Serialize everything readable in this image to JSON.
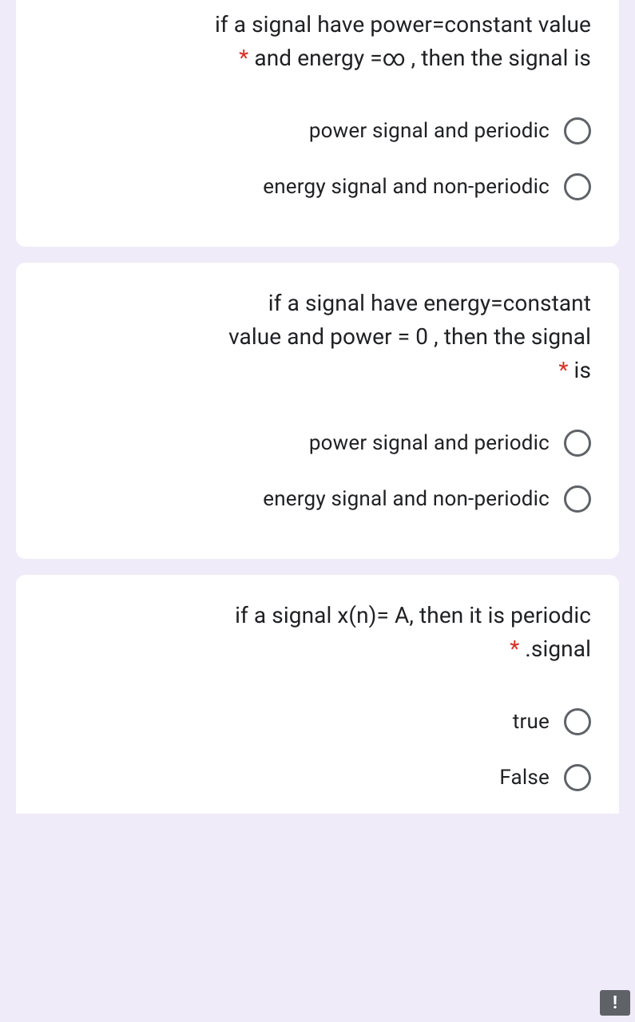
{
  "colors": {
    "page_bg": "#f0ebf8",
    "card_bg": "#ffffff",
    "text": "#202124",
    "required": "#d93025",
    "radio_border": "#5f6368",
    "badge_bg": "#5f6368"
  },
  "typography": {
    "question_fontsize": 28,
    "option_fontsize": 26,
    "font_family": "Roboto, Arial, sans-serif"
  },
  "questions": [
    {
      "text_before": "if a signal have power=constant value and energy =∞ , then the signal is",
      "required_marker": "*",
      "options": [
        {
          "label": "power signal and periodic"
        },
        {
          "label": "energy signal and non-periodic"
        }
      ]
    },
    {
      "text_before": "if a signal have energy=constant value and power = 0 , then the signal is",
      "required_marker": "*",
      "options": [
        {
          "label": "power signal and periodic"
        },
        {
          "label": "energy signal and non-periodic"
        }
      ]
    },
    {
      "text_before": "if a signal x(n)= A, then it is periodic .signal",
      "required_marker": "*",
      "options": [
        {
          "label": "true"
        },
        {
          "label": "False"
        }
      ]
    }
  ],
  "q1_line1": "if a signal have power=constant value",
  "q1_line2a": "and energy =∞ , then the signal is",
  "q2_line1": "if a signal have energy=constant",
  "q2_line2": "value and power = 0 , then the signal",
  "q2_line3": "is",
  "q3_line1": "if a signal x(n)= A, then it is periodic",
  "q3_line2": ".signal",
  "asterisk": "* ",
  "badge_text": "!"
}
